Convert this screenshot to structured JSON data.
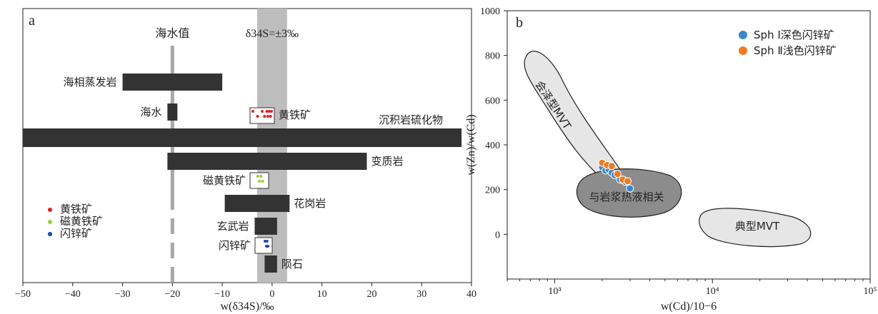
{
  "chart_data": [
    {
      "panel": "a",
      "type": "bar",
      "xlabel": "w(δ34S)/‰",
      "xlim": [
        -50,
        40
      ],
      "xticks": [
        "−50",
        "−40",
        "−30",
        "−20",
        "−10",
        "0",
        "10",
        "20",
        "30",
        "40"
      ],
      "annotations": {
        "seawater": "海水值",
        "band": "δ34S=±3‰"
      },
      "seawater_value": -20,
      "band_range": [
        -3,
        3
      ],
      "ranges": [
        {
          "label": "海相蒸发岩",
          "min": -30,
          "max": -10
        },
        {
          "label": "海水",
          "min": -21,
          "max": -19
        },
        {
          "label": "沉积岩硫化物",
          "min": -50,
          "max": 38
        },
        {
          "label": "变质岩",
          "min": -21,
          "max": 19
        },
        {
          "label": "花岗岩",
          "min": -9.5,
          "max": 3.5
        },
        {
          "label": "玄武岩",
          "min": -3.5,
          "max": 1
        },
        {
          "label": "陨石",
          "min": -1.5,
          "max": 1
        }
      ],
      "samples": [
        {
          "label": "黄铁矿",
          "color": "#e02020",
          "values": [
            -2,
            -1,
            0,
            0.5,
            1,
            1.2,
            1.5,
            1.8,
            2
          ]
        },
        {
          "label": "磁黄铁矿",
          "color": "#9acd32",
          "values": [
            -0.5,
            0,
            0.5,
            1
          ]
        },
        {
          "label": "闪锌矿",
          "color": "#1f3fbf",
          "values": [
            0.5,
            1,
            1.2,
            1.5
          ]
        }
      ],
      "legend": [
        "黄铁矿",
        "磁黄铁矿",
        "闪锌矿"
      ]
    },
    {
      "panel": "b",
      "type": "scatter",
      "xlabel": "w(Cd)/10−6",
      "ylabel": "w(Zn)/w(Cd)",
      "xscale": "log",
      "xlim": [
        500,
        100000
      ],
      "ylim": [
        -200,
        1000
      ],
      "yticks": [
        "0",
        "200",
        "400",
        "600",
        "800",
        "1000"
      ],
      "xticks": [
        "10³",
        "10⁴",
        "10⁵"
      ],
      "fields": [
        "会泽型MVT",
        "与岩浆热液相关",
        "典型MVT"
      ],
      "series": [
        {
          "name": "Sph Ⅰ深色闪锌矿",
          "color": "#3a86c8",
          "points": [
            [
              2000,
              300
            ],
            [
              2100,
              285
            ],
            [
              2200,
              290
            ],
            [
              2300,
              275
            ],
            [
              2400,
              265
            ],
            [
              2600,
              245
            ],
            [
              2800,
              235
            ],
            [
              3000,
              205
            ]
          ]
        },
        {
          "name": "Sph Ⅱ浅色闪锌矿",
          "color": "#f07a20",
          "points": [
            [
              2000,
              320
            ],
            [
              2150,
              310
            ],
            [
              2300,
              305
            ],
            [
              2500,
              270
            ],
            [
              2700,
              245
            ],
            [
              2900,
              238
            ]
          ]
        }
      ]
    }
  ]
}
